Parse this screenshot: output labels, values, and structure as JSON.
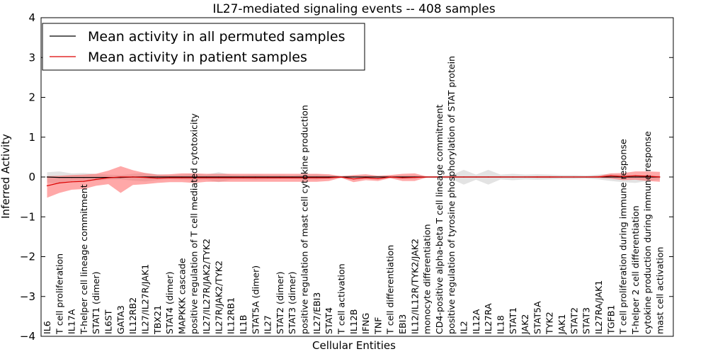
{
  "chart_data": {
    "type": "line",
    "title": "IL27-mediated signaling events -- 408 samples",
    "xlabel": "Cellular Entities",
    "ylabel": "Inferred Activity",
    "ylim": [
      -4,
      4
    ],
    "yticks": [
      -4,
      -3,
      -2,
      -1,
      0,
      1,
      2,
      3,
      4
    ],
    "ytick_labels": [
      "−4",
      "−3",
      "−2",
      "−1",
      "0",
      "1",
      "2",
      "3",
      "4"
    ],
    "grid": false,
    "legend_position": "top-left",
    "categories": [
      "IL6",
      "T cell proliferation",
      "IL17A",
      "T-helper cell lineage commitment",
      "STAT1 (dimer)",
      "IL6ST",
      "GATA3",
      "IL12RB2",
      "IL27/IL27R/JAK1",
      "TBX21",
      "STAT4 (dimer)",
      "MAPKKK cascade",
      "positive regulation of T cell mediated cytotoxicity",
      "IL27/IL27R/JAK2/TYK2",
      "IL27R/JAK2/TYK2",
      "IL12RB1",
      "IL1B",
      "STAT5A (dimer)",
      "IL27",
      "STAT2 (dimer)",
      "STAT3 (dimer)",
      "positive regulation of mast cell cytokine production",
      "IL27/EBI3",
      "STAT4",
      "T cell activation",
      "IL12B",
      "IFNG",
      "TNF",
      "T cell differentiation",
      "EBI3",
      "IL12/IL12R/TYK2/JAK2",
      "monocyte differentiation",
      "CD4-positive alpha-beta T cell lineage commitment",
      "positive regulation of tyrosine phosphorylation of STAT protein",
      "IL2",
      "IL12A",
      "IL27RA",
      "IL18",
      "STAT1",
      "JAK2",
      "STAT5A",
      "TYK2",
      "JAK1",
      "STAT2",
      "STAT3",
      "IL27RA/JAK1",
      "TGFB1",
      "T cell proliferation during immune response",
      "T-helper 2 cell differentiation",
      "cytokine production during immune response",
      "mast cell activation"
    ],
    "series": [
      {
        "name": "Mean activity in all permuted samples",
        "color": "#000000",
        "band_color": "#b0b0b0",
        "values": [
          0.0,
          -0.01,
          -0.01,
          -0.01,
          -0.01,
          -0.01,
          -0.01,
          0.0,
          0.0,
          0.0,
          0.0,
          0.0,
          0.0,
          0.0,
          0.0,
          0.0,
          0.0,
          0.0,
          0.0,
          0.0,
          0.0,
          0.0,
          0.0,
          0.0,
          0.0,
          0.0,
          0.0,
          0.0,
          0.0,
          0.0,
          0.0,
          0.0,
          0.0,
          0.0,
          0.0,
          0.0,
          0.0,
          0.0,
          0.0,
          0.0,
          0.0,
          0.0,
          0.0,
          0.0,
          0.0,
          0.0,
          0.0,
          0.0,
          0.0,
          0.0,
          0.0
        ],
        "upper": [
          0.12,
          0.14,
          0.09,
          0.1,
          0.08,
          0.06,
          0.05,
          0.08,
          0.1,
          0.07,
          0.05,
          0.06,
          0.08,
          0.06,
          0.12,
          0.06,
          0.05,
          0.06,
          0.05,
          0.05,
          0.04,
          0.06,
          0.07,
          0.04,
          0.03,
          0.03,
          0.03,
          0.03,
          0.03,
          0.04,
          0.04,
          0.02,
          0.03,
          0.05,
          0.18,
          0.06,
          0.18,
          0.06,
          0.08,
          0.06,
          0.07,
          0.06,
          0.05,
          0.05,
          0.04,
          0.06,
          0.08,
          0.06,
          0.06,
          0.04,
          0.03
        ],
        "lower": [
          -0.14,
          -0.17,
          -0.1,
          -0.12,
          -0.09,
          -0.07,
          -0.06,
          -0.09,
          -0.11,
          -0.08,
          -0.06,
          -0.07,
          -0.08,
          -0.07,
          -0.13,
          -0.07,
          -0.06,
          -0.07,
          -0.06,
          -0.05,
          -0.05,
          -0.06,
          -0.07,
          -0.04,
          -0.03,
          -0.03,
          -0.03,
          -0.03,
          -0.03,
          -0.04,
          -0.04,
          -0.02,
          -0.03,
          -0.05,
          -0.19,
          -0.07,
          -0.19,
          -0.06,
          -0.08,
          -0.06,
          -0.07,
          -0.06,
          -0.05,
          -0.05,
          -0.04,
          -0.06,
          -0.1,
          -0.13,
          -0.15,
          -0.1,
          -0.06
        ]
      },
      {
        "name": "Mean activity in patient samples",
        "color": "#dd0000",
        "band_color": "#ff6060",
        "values": [
          -0.22,
          -0.15,
          -0.12,
          -0.11,
          -0.06,
          -0.02,
          0.0,
          0.0,
          -0.01,
          -0.03,
          -0.02,
          -0.02,
          -0.02,
          -0.02,
          -0.02,
          -0.02,
          -0.02,
          -0.02,
          -0.02,
          -0.02,
          -0.02,
          -0.02,
          -0.02,
          -0.02,
          0.0,
          -0.05,
          -0.02,
          -0.04,
          0.0,
          -0.02,
          -0.01,
          0.0,
          0.0,
          0.0,
          0.0,
          0.0,
          0.0,
          0.0,
          0.0,
          0.0,
          0.0,
          0.0,
          0.0,
          0.0,
          0.0,
          0.0,
          0.03,
          0.01,
          0.03,
          0.02,
          0.0
        ],
        "upper": [
          0.02,
          0.03,
          0.05,
          0.06,
          0.08,
          0.16,
          0.27,
          0.17,
          0.1,
          0.06,
          0.07,
          0.09,
          0.09,
          0.08,
          0.08,
          0.08,
          0.08,
          0.08,
          0.08,
          0.08,
          0.08,
          0.08,
          0.08,
          0.07,
          0.02,
          0.05,
          0.07,
          0.03,
          0.05,
          0.08,
          0.09,
          0.01,
          0.01,
          0.01,
          0.01,
          0.01,
          0.01,
          0.01,
          0.01,
          0.01,
          0.02,
          0.02,
          0.01,
          0.01,
          0.01,
          0.03,
          0.09,
          0.1,
          0.14,
          0.14,
          0.13
        ],
        "lower": [
          -0.52,
          -0.4,
          -0.32,
          -0.3,
          -0.22,
          -0.18,
          -0.4,
          -0.2,
          -0.18,
          -0.15,
          -0.13,
          -0.13,
          -0.15,
          -0.12,
          -0.12,
          -0.12,
          -0.12,
          -0.12,
          -0.12,
          -0.12,
          -0.12,
          -0.12,
          -0.12,
          -0.1,
          -0.02,
          -0.13,
          -0.08,
          -0.1,
          -0.03,
          -0.1,
          -0.1,
          -0.01,
          -0.01,
          -0.01,
          -0.01,
          -0.01,
          -0.01,
          -0.01,
          -0.01,
          -0.01,
          -0.02,
          -0.02,
          -0.01,
          -0.01,
          -0.01,
          -0.02,
          -0.04,
          -0.08,
          -0.07,
          -0.1,
          -0.12
        ]
      }
    ]
  }
}
